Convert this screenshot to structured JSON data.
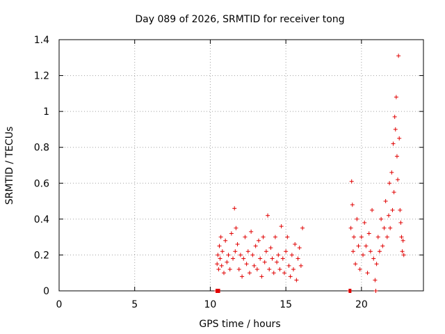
{
  "chart_data": {
    "type": "scatter",
    "title": "Day 089 of 2026, SRMTID for receiver tong",
    "xlabel": "GPS time / hours",
    "ylabel": "SRMTID / TECUs",
    "xlim": [
      0,
      24.1
    ],
    "ylim": [
      0,
      1.4
    ],
    "xticks": [
      0,
      5,
      10,
      15,
      20
    ],
    "xtick_labels": [
      "0",
      "5",
      "10",
      "15",
      "20"
    ],
    "yticks": [
      0,
      0.2,
      0.4,
      0.6,
      0.8,
      1.0,
      1.2,
      1.4
    ],
    "ytick_labels": [
      "0",
      "0.2",
      "0.4",
      "0.6",
      "0.8",
      "1",
      "1.2",
      "1.4"
    ],
    "grid": true,
    "marker": "plus",
    "color": "#e00000",
    "series": [
      {
        "name": "tong",
        "x": [
          10.4,
          10.45,
          10.5,
          10.55,
          10.6,
          10.65,
          10.7,
          10.75,
          10.8,
          10.9,
          11.0,
          11.1,
          11.2,
          11.3,
          11.4,
          11.5,
          11.6,
          11.65,
          11.7,
          11.8,
          11.9,
          12.0,
          12.1,
          12.2,
          12.3,
          12.4,
          12.5,
          12.6,
          12.7,
          12.8,
          12.9,
          13.0,
          13.1,
          13.2,
          13.3,
          13.4,
          13.5,
          13.6,
          13.7,
          13.8,
          13.9,
          14.0,
          14.1,
          14.2,
          14.3,
          14.4,
          14.5,
          14.6,
          14.7,
          14.8,
          14.9,
          15.0,
          15.1,
          15.2,
          15.3,
          15.4,
          15.5,
          15.6,
          15.7,
          15.8,
          15.9,
          16.0,
          16.1,
          19.2,
          19.3,
          19.35,
          19.4,
          19.45,
          19.5,
          19.6,
          19.7,
          19.8,
          19.9,
          20.0,
          20.1,
          20.2,
          20.3,
          20.4,
          20.5,
          20.6,
          20.7,
          20.8,
          20.9,
          20.95,
          21.0,
          21.1,
          21.2,
          21.3,
          21.4,
          21.5,
          21.6,
          21.7,
          21.8,
          21.85,
          21.9,
          22.0,
          22.05,
          22.1,
          22.15,
          22.2,
          22.25,
          22.3,
          22.35,
          22.4,
          22.45,
          22.5,
          22.55,
          22.6,
          22.65,
          22.7,
          22.75,
          22.8
        ],
        "values": [
          0.0,
          0.15,
          0.2,
          0.12,
          0.25,
          0.18,
          0.3,
          0.14,
          0.22,
          0.1,
          0.28,
          0.16,
          0.2,
          0.12,
          0.32,
          0.18,
          0.46,
          0.22,
          0.35,
          0.26,
          0.12,
          0.2,
          0.08,
          0.18,
          0.3,
          0.15,
          0.22,
          0.1,
          0.33,
          0.2,
          0.14,
          0.25,
          0.12,
          0.28,
          0.18,
          0.08,
          0.3,
          0.16,
          0.22,
          0.42,
          0.12,
          0.24,
          0.18,
          0.1,
          0.3,
          0.16,
          0.2,
          0.12,
          0.36,
          0.18,
          0.1,
          0.22,
          0.3,
          0.14,
          0.08,
          0.2,
          0.12,
          0.26,
          0.06,
          0.18,
          0.24,
          0.14,
          0.35,
          0.0,
          0.35,
          0.61,
          0.48,
          0.22,
          0.3,
          0.15,
          0.4,
          0.25,
          0.12,
          0.3,
          0.2,
          0.38,
          0.25,
          0.1,
          0.32,
          0.22,
          0.45,
          0.18,
          0.06,
          0.0,
          0.15,
          0.3,
          0.22,
          0.4,
          0.25,
          0.35,
          0.5,
          0.3,
          0.42,
          0.6,
          0.35,
          0.66,
          0.45,
          0.82,
          0.55,
          0.97,
          0.9,
          1.08,
          0.75,
          0.62,
          1.31,
          0.85,
          0.45,
          0.38,
          0.3,
          0.22,
          0.28,
          0.2
        ]
      }
    ],
    "gap_markers": [
      {
        "x_start": 10.35,
        "x_end": 10.65,
        "y": 0
      },
      {
        "x_start": 19.15,
        "x_end": 19.25,
        "y": 0
      }
    ]
  }
}
